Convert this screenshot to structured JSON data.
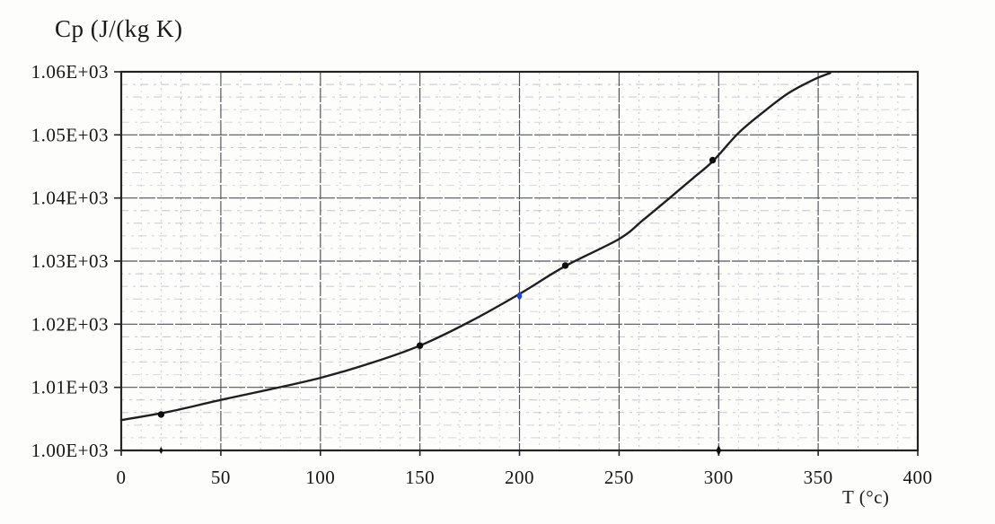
{
  "chart_data": {
    "type": "line",
    "title": "Cp (J/(kg K)",
    "ylabel": "Cp (J/(kg K)",
    "xlabel": "T (°c)",
    "xlim": [
      0,
      400
    ],
    "ylim": [
      1000,
      1060
    ],
    "x_ticks": [
      0,
      50,
      100,
      150,
      200,
      250,
      300,
      350,
      400
    ],
    "x_tick_labels": [
      "0",
      "50",
      "100",
      "150",
      "200",
      "250",
      "300",
      "350",
      "400"
    ],
    "y_ticks": [
      1000,
      1010,
      1020,
      1030,
      1040,
      1050,
      1060
    ],
    "y_tick_labels": [
      "1.00E+03",
      "1.01E+03",
      "1.02E+03",
      "1.03E+03",
      "1.04E+03",
      "1.05E+03",
      "1.06E+03"
    ],
    "grid": {
      "minor_x_step": 10,
      "minor_y_step": 2,
      "major_x_step": 50,
      "major_y_step": 10,
      "minor_on": true,
      "major_on": true
    },
    "legend": null,
    "curve_samples": [
      [
        0,
        1004.8
      ],
      [
        25,
        1006.2
      ],
      [
        50,
        1008.0
      ],
      [
        75,
        1009.7
      ],
      [
        100,
        1011.5
      ],
      [
        125,
        1013.8
      ],
      [
        150,
        1016.6
      ],
      [
        175,
        1020.4
      ],
      [
        200,
        1024.8
      ],
      [
        223,
        1029.2
      ],
      [
        250,
        1033.5
      ],
      [
        262,
        1036.5
      ],
      [
        275,
        1039.9
      ],
      [
        287,
        1043.1
      ],
      [
        297,
        1045.8
      ],
      [
        310,
        1050.3
      ],
      [
        322,
        1053.5
      ],
      [
        335,
        1056.6
      ],
      [
        348,
        1058.8
      ],
      [
        356,
        1059.8
      ]
    ],
    "marked_points": [
      [
        20,
        1005.7
      ],
      [
        150,
        1016.6
      ],
      [
        223,
        1029.3
      ],
      [
        297,
        1046.0
      ]
    ],
    "highlight_point": {
      "x": 200,
      "y": 1024.5
    },
    "axis_marks": [
      [
        20,
        1000
      ],
      [
        300,
        1000
      ]
    ]
  },
  "style": {
    "curve_color": "#1f1f22",
    "point_color": "#0e0e10",
    "highlight_color": "#2342dd",
    "grid_minor_color": "#b2b6bd",
    "grid_major_color": "#54565b",
    "axis_color": "#232325",
    "text_color": "#161616",
    "background_color": "#fdfdfc"
  }
}
